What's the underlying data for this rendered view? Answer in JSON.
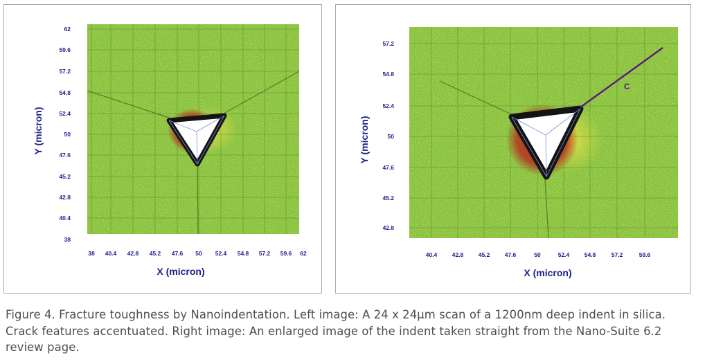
{
  "figures": [
    {
      "id": "left",
      "x_label": "X (micron)",
      "y_label": "Y (micron)",
      "x_ticks": [
        "38",
        "40.4",
        "42.8",
        "45.2",
        "47.6",
        "50",
        "52.4",
        "54.8",
        "57.2",
        "59.6",
        "62"
      ],
      "y_ticks": [
        "62",
        "59.6",
        "57.2",
        "54.8",
        "52.4",
        "50",
        "47.6",
        "45.2",
        "42.8",
        "40.4",
        "38"
      ],
      "annotation": ""
    },
    {
      "id": "right",
      "x_label": "X (micron)",
      "y_label": "Y (micron)",
      "x_ticks": [
        "40.4",
        "42.8",
        "45.2",
        "47.6",
        "50",
        "52.4",
        "54.8",
        "57.2",
        "59.6"
      ],
      "y_ticks": [
        "57.2",
        "54.8",
        "52.4",
        "50",
        "47.6",
        "45.2",
        "42.8"
      ],
      "annotation": "C"
    }
  ],
  "colors": {
    "scan_base": "#86c13a",
    "indent_dark": "#141414",
    "indent_halo": "#b8211c",
    "axis_text": "#1b1f8a",
    "crack_line": "#5a1a7a",
    "panel_border": "#a9a9a9",
    "caption_text": "#4d4d4d"
  },
  "caption": "Figure 4. Fracture toughness by Nanoindentation. Left image: A 24 x 24µm scan of a 1200nm deep indent in silica. Crack features accentuated. Right image: An enlarged image of the indent taken straight from the Nano-Suite 6.2 review page."
}
